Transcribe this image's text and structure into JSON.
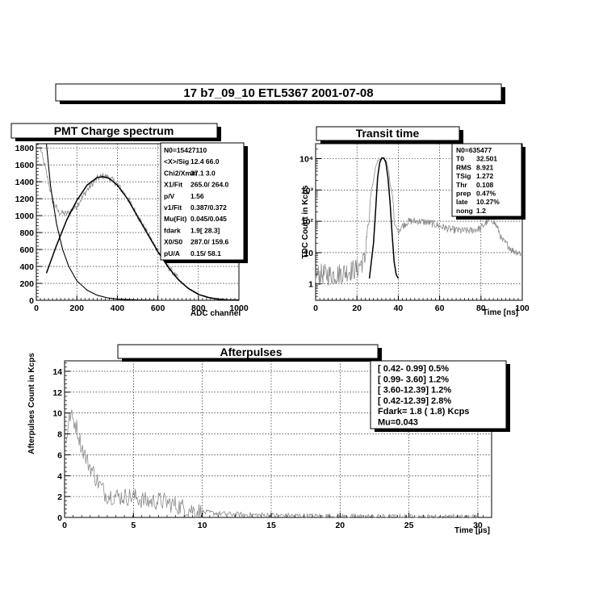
{
  "header": {
    "title": "17  b7_09_10   ETL5367   2001-07-08"
  },
  "charts": {
    "charge": {
      "title": "PMT Charge spectrum",
      "xlabel": "ADC channel",
      "ylabel": "",
      "x_ticks": [
        "0",
        "200",
        "400",
        "600",
        "800",
        "1000"
      ],
      "y_ticks": [
        "0",
        "200",
        "400",
        "600",
        "800",
        "1000",
        "1200",
        "1400",
        "1600",
        "1800"
      ],
      "stats": [
        {
          "k": "N0=15427110",
          "v": ""
        },
        {
          "k": "<X>/Sig",
          "v": "12.4   66.0"
        },
        {
          "k": "Chi2/Xmin",
          "v": "37.1    3.0"
        },
        {
          "k": "X1/Fit",
          "v": "265.0/ 264.0"
        },
        {
          "k": "p/V",
          "v": "1.56"
        },
        {
          "k": "v1/Fit",
          "v": "0.387/0.372"
        },
        {
          "k": "Mu(Fit)",
          "v": "0.045/0.045"
        },
        {
          "k": "fdark",
          "v": "1.9[ 28.3]"
        },
        {
          "k": "X0/S0",
          "v": "287.0/ 159.6"
        },
        {
          "k": "pU/A",
          "v": "0.15/  58.1"
        }
      ]
    },
    "transit": {
      "title": "Transit time",
      "xlabel": "Time [ns]",
      "ylabel": "TDC Count in Kcps",
      "x_ticks": [
        "0",
        "20",
        "40",
        "60",
        "80",
        "100"
      ],
      "y_ticks": [
        "1",
        "10",
        "10²",
        "10³",
        "10⁴"
      ],
      "stats": [
        {
          "k": "N0=635477",
          "v": ""
        },
        {
          "k": "T0",
          "v": "32.501"
        },
        {
          "k": "RMS",
          "v": "8.921"
        },
        {
          "k": "TSig",
          "v": "1.272"
        },
        {
          "k": "Thr",
          "v": "0.108"
        },
        {
          "k": "prep",
          "v": "0.47%"
        },
        {
          "k": "late",
          "v": "10.27%"
        },
        {
          "k": "nong",
          "v": "1.2"
        }
      ]
    },
    "after": {
      "title": "Afterpulses",
      "xlabel": "Time [µs]",
      "ylabel": "Afterpulses Count in Kcps",
      "x_ticks": [
        "0",
        "5",
        "10",
        "15",
        "20",
        "25",
        "30"
      ],
      "y_ticks": [
        "0",
        "2",
        "4",
        "6",
        "8",
        "10",
        "12",
        "14"
      ],
      "stats": [
        "[ 0.42- 0.99]   0.5%",
        "[ 0.99- 3.60]   1.2%",
        "[ 3.60-12.39]    1.2%",
        "[ 0.42-12.39]   2.8%",
        "Fdark=  1.8 (  1.8) Kcps",
        "Mu=0.043"
      ]
    }
  },
  "chart_data": [
    {
      "type": "line",
      "title": "PMT Charge spectrum",
      "xlabel": "ADC channel",
      "xlim": [
        0,
        1000
      ],
      "ylim": [
        0,
        1850
      ],
      "series": [
        {
          "values": [
            [
              20,
              1800
            ],
            [
              50,
              1500
            ],
            [
              80,
              1180
            ],
            [
              110,
              1040
            ],
            [
              150,
              1020
            ],
            [
              200,
              1120
            ],
            [
              250,
              1300
            ],
            [
              300,
              1440
            ],
            [
              330,
              1470
            ],
            [
              360,
              1450
            ],
            [
              400,
              1370
            ],
            [
              450,
              1210
            ],
            [
              500,
              1000
            ],
            [
              550,
              790
            ],
            [
              600,
              580
            ],
            [
              650,
              400
            ],
            [
              700,
              250
            ],
            [
              750,
              140
            ],
            [
              800,
              75
            ],
            [
              850,
              35
            ],
            [
              900,
              15
            ],
            [
              950,
              5
            ],
            [
              1000,
              2
            ]
          ]
        },
        {
          "values": [
            [
              50,
              320
            ],
            [
              100,
              650
            ],
            [
              150,
              950
            ],
            [
              200,
              1180
            ],
            [
              250,
              1360
            ],
            [
              300,
              1450
            ],
            [
              330,
              1460
            ],
            [
              360,
              1440
            ],
            [
              400,
              1360
            ],
            [
              450,
              1200
            ],
            [
              500,
              990
            ],
            [
              550,
              780
            ],
            [
              600,
              575
            ],
            [
              650,
              395
            ],
            [
              700,
              245
            ],
            [
              750,
              140
            ],
            [
              800,
              70
            ],
            [
              850,
              32
            ],
            [
              900,
              12
            ],
            [
              950,
              4
            ],
            [
              1000,
              1
            ]
          ]
        },
        {
          "values": [
            [
              50,
              1850
            ],
            [
              70,
              1350
            ],
            [
              100,
              900
            ],
            [
              130,
              600
            ],
            [
              160,
              400
            ],
            [
              200,
              230
            ],
            [
              250,
              120
            ],
            [
              300,
              60
            ],
            [
              350,
              30
            ],
            [
              400,
              15
            ],
            [
              500,
              4
            ],
            [
              600,
              1
            ]
          ]
        }
      ]
    },
    {
      "type": "line",
      "title": "Transit time",
      "xlabel": "Time [ns]",
      "ylabel": "TDC Count in Kcps",
      "yscale": "log",
      "xlim": [
        0,
        100
      ],
      "ylim": [
        0.3,
        30000
      ],
      "series": [
        {
          "values": [
            [
              0,
              2
            ],
            [
              10,
              2
            ],
            [
              20,
              3
            ],
            [
              24,
              6
            ],
            [
              26,
              100
            ],
            [
              28,
              1800
            ],
            [
              30,
              8500
            ],
            [
              32,
              10500
            ],
            [
              34,
              9000
            ],
            [
              36,
              1500
            ],
            [
              38,
              80
            ],
            [
              40,
              50
            ],
            [
              45,
              100
            ],
            [
              50,
              100
            ],
            [
              55,
              90
            ],
            [
              60,
              70
            ],
            [
              65,
              55
            ],
            [
              70,
              50
            ],
            [
              75,
              50
            ],
            [
              80,
              60
            ],
            [
              85,
              120
            ],
            [
              88,
              60
            ],
            [
              90,
              25
            ],
            [
              95,
              12
            ],
            [
              100,
              9
            ]
          ]
        },
        {
          "values": [
            [
              26,
              1.5
            ],
            [
              28,
              20
            ],
            [
              29,
              200
            ],
            [
              30,
              2500
            ],
            [
              31,
              7500
            ],
            [
              32,
              10500
            ],
            [
              33,
              10500
            ],
            [
              34,
              7500
            ],
            [
              35,
              2500
            ],
            [
              36,
              400
            ],
            [
              37,
              40
            ],
            [
              38,
              5
            ],
            [
              39,
              2
            ],
            [
              40,
              1.5
            ]
          ]
        }
      ]
    },
    {
      "type": "line",
      "title": "Afterpulses",
      "xlabel": "Time [µs]",
      "ylabel": "Afterpulses Count in Kcps",
      "xlim": [
        0,
        31
      ],
      "ylim": [
        0,
        15
      ],
      "series": [
        {
          "values": [
            [
              0.1,
              7.5
            ],
            [
              0.4,
              9.8
            ],
            [
              0.8,
              9.0
            ],
            [
              1.2,
              7.0
            ],
            [
              1.6,
              5.5
            ],
            [
              2.0,
              4.5
            ],
            [
              2.5,
              3.2
            ],
            [
              3.0,
              2.2
            ],
            [
              4.0,
              2.0
            ],
            [
              5.0,
              2.0
            ],
            [
              6.0,
              1.5
            ],
            [
              7.0,
              1.6
            ],
            [
              8.0,
              1.2
            ],
            [
              9.0,
              0.8
            ],
            [
              10,
              0.5
            ],
            [
              12,
              0.3
            ],
            [
              15,
              0.2
            ],
            [
              20,
              0.1
            ],
            [
              25,
              0.05
            ],
            [
              30,
              0.05
            ]
          ]
        }
      ]
    }
  ]
}
